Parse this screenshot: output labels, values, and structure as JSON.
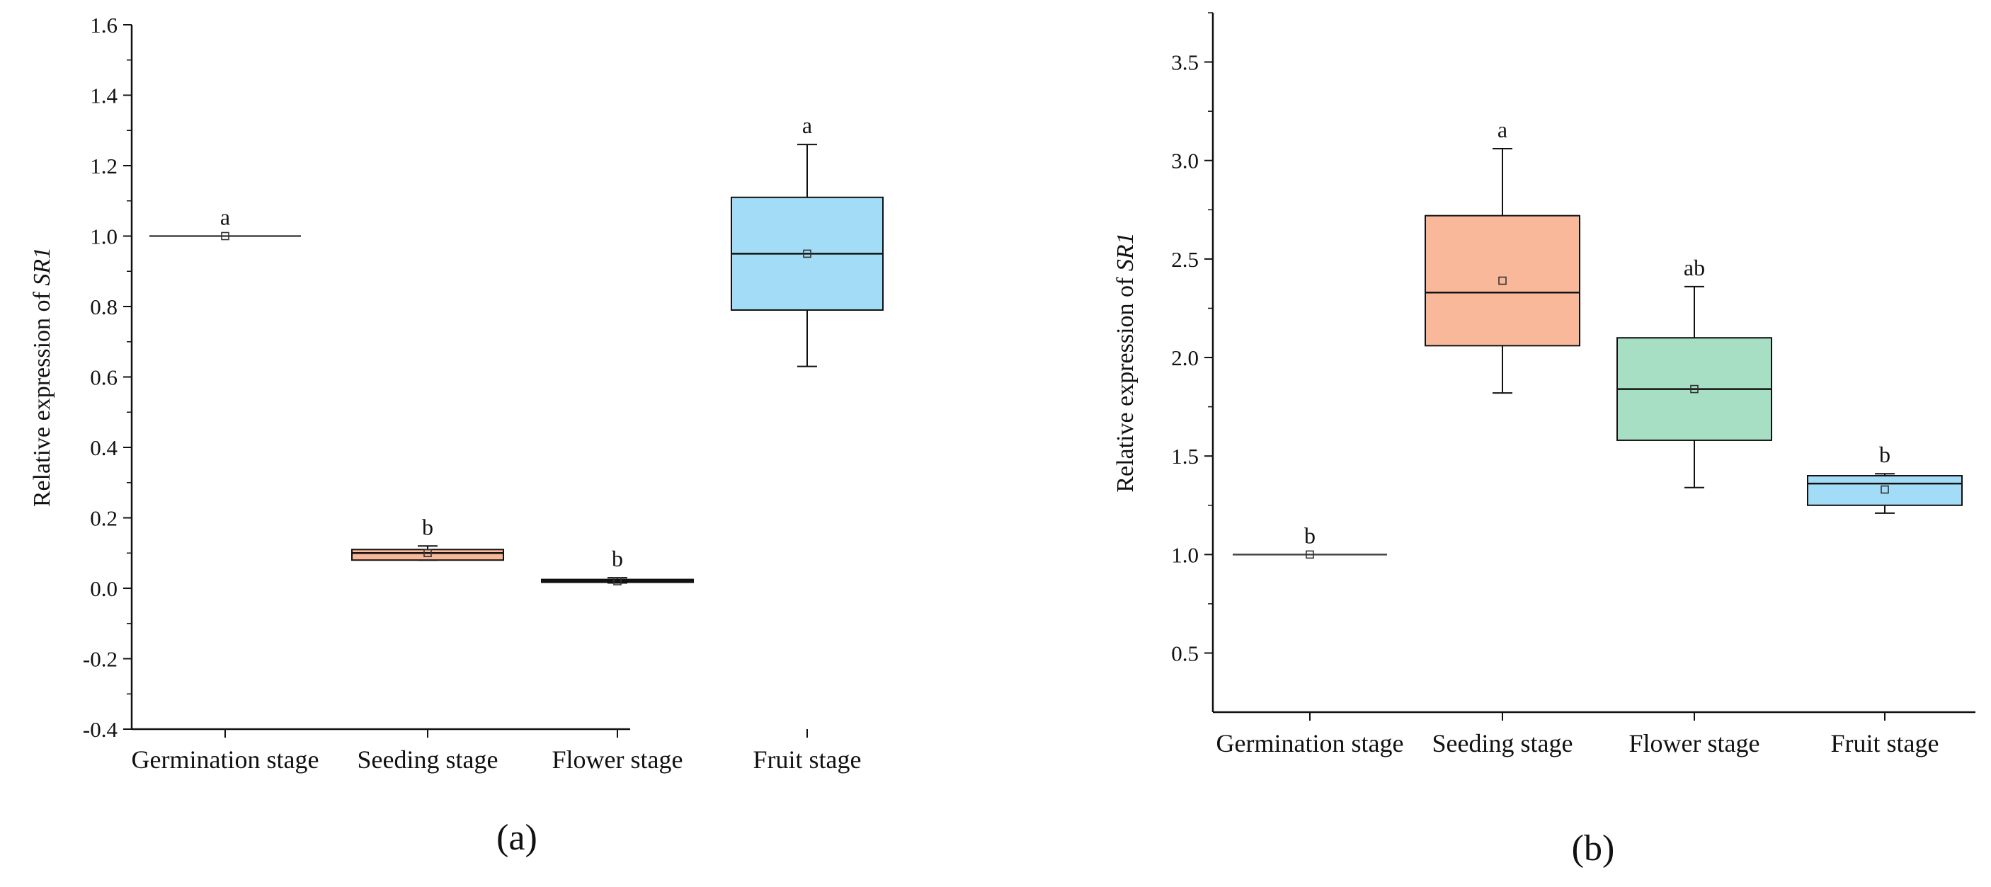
{
  "chart_data": [
    {
      "type": "box",
      "panel_label": "(a)",
      "ylabel_prefix": "Relative expression of ",
      "ylabel_gene": "SR1",
      "xlabel": "",
      "ylim": [
        -0.4,
        1.6
      ],
      "yticks": [
        -0.4,
        -0.2,
        0.0,
        0.2,
        0.4,
        0.6,
        0.8,
        1.0,
        1.2,
        1.4,
        1.6
      ],
      "ytick_labels": [
        "-0.4",
        "-0.2",
        "0.0",
        "0.2",
        "0.4",
        "0.6",
        "0.8",
        "1.0",
        "1.2",
        "1.4",
        "1.6"
      ],
      "categories": [
        "Germination stage",
        "Seeding stage",
        "Flower stage",
        "Fruit stage"
      ],
      "boxes": [
        {
          "category": "Germination stage",
          "min": 1.0,
          "q1": 1.0,
          "median": 1.0,
          "q3": 1.0,
          "max": 1.0,
          "mean": 1.0,
          "letter": "a",
          "color": "#ffffff"
        },
        {
          "category": "Seeding stage",
          "min": 0.08,
          "q1": 0.08,
          "median": 0.1,
          "q3": 0.11,
          "max": 0.12,
          "mean": 0.1,
          "letter": "b",
          "color": "#f9b89a"
        },
        {
          "category": "Flower stage",
          "min": 0.015,
          "q1": 0.018,
          "median": 0.02,
          "q3": 0.025,
          "max": 0.03,
          "mean": 0.02,
          "letter": "b",
          "color": "#222222"
        },
        {
          "category": "Fruit stage",
          "min": 0.63,
          "q1": 0.79,
          "median": 0.95,
          "q3": 1.11,
          "max": 1.26,
          "mean": 0.95,
          "letter": "a",
          "color": "#a3dcf6"
        }
      ]
    },
    {
      "type": "box",
      "panel_label": "(b)",
      "ylabel_prefix": "Relative expression of ",
      "ylabel_gene": "SR1",
      "xlabel": "",
      "ylim": [
        0.2,
        3.75
      ],
      "yticks": [
        0.5,
        1.0,
        1.5,
        2.0,
        2.5,
        3.0,
        3.5
      ],
      "ytick_labels": [
        "0.5",
        "1.0",
        "1.5",
        "2.0",
        "2.5",
        "3.0",
        "3.5"
      ],
      "categories": [
        "Germination stage",
        "Seeding stage",
        "Flower stage",
        "Fruit stage"
      ],
      "boxes": [
        {
          "category": "Germination stage",
          "min": 1.0,
          "q1": 1.0,
          "median": 1.0,
          "q3": 1.0,
          "max": 1.0,
          "mean": 1.0,
          "letter": "b",
          "color": "#ffffff"
        },
        {
          "category": "Seeding stage",
          "min": 1.82,
          "q1": 2.06,
          "median": 2.33,
          "q3": 2.72,
          "max": 3.06,
          "mean": 2.39,
          "letter": "a",
          "color": "#f9b89a"
        },
        {
          "category": "Flower stage",
          "min": 1.34,
          "q1": 1.58,
          "median": 1.84,
          "q3": 2.1,
          "max": 2.36,
          "mean": 1.84,
          "letter": "ab",
          "color": "#a6dfc4"
        },
        {
          "category": "Fruit stage",
          "min": 1.21,
          "q1": 1.25,
          "median": 1.36,
          "q3": 1.4,
          "max": 1.41,
          "mean": 1.33,
          "letter": "b",
          "color": "#a3dcf6"
        }
      ]
    }
  ]
}
